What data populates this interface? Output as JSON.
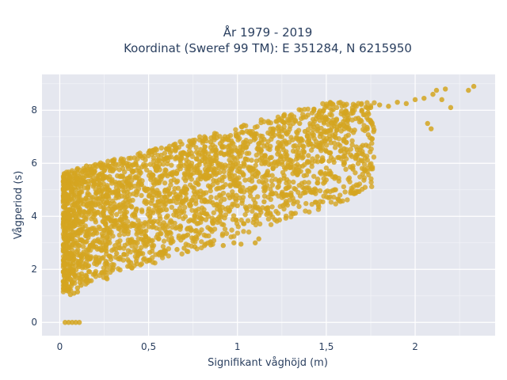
{
  "chart_data": {
    "type": "scatter",
    "title": "År 1979 - 2019",
    "subtitle": "Koordinat (Sweref 99 TM): E 351284, N 6215950",
    "xlabel": "Signifikant våghöjd (m)",
    "ylabel": "Vågperiod (s)",
    "xlim": [
      -0.1,
      2.45
    ],
    "ylim": [
      -0.5,
      9.35
    ],
    "x_ticks": [
      0,
      0.5,
      1,
      1.5,
      2
    ],
    "x_tick_labels": [
      "0",
      "0,5",
      "1",
      "1,5",
      "2"
    ],
    "y_ticks": [
      0,
      2,
      4,
      6,
      8
    ],
    "y_tick_labels": [
      "0",
      "2",
      "4",
      "6",
      "8"
    ],
    "grid": true,
    "legend": "none",
    "marker_color": "#d4a520",
    "background_color": "#e5e7ef",
    "series": [
      {
        "points": [
          [
            0.03,
            0.0
          ],
          [
            0.05,
            0.0
          ],
          [
            0.07,
            0.0
          ],
          [
            0.09,
            0.0
          ],
          [
            0.11,
            0.0
          ],
          [
            0.02,
            1.55
          ],
          [
            0.04,
            1.2
          ],
          [
            0.06,
            1.05
          ],
          [
            0.08,
            1.1
          ],
          [
            0.1,
            1.15
          ],
          [
            0.05,
            5.3
          ],
          [
            0.1,
            5.8
          ],
          [
            0.15,
            5.9
          ],
          [
            0.2,
            5.95
          ],
          [
            0.3,
            6.1
          ],
          [
            0.45,
            5.7
          ],
          [
            0.5,
            6.4
          ],
          [
            0.6,
            6.2
          ],
          [
            0.75,
            6.7
          ],
          [
            0.85,
            6.8
          ],
          [
            1.0,
            7.0
          ],
          [
            1.1,
            7.1
          ],
          [
            1.2,
            7.3
          ],
          [
            1.35,
            7.5
          ],
          [
            1.5,
            7.7
          ],
          [
            1.6,
            7.8
          ],
          [
            1.65,
            7.9
          ],
          [
            1.7,
            8.0
          ],
          [
            1.75,
            8.1
          ],
          [
            1.8,
            8.2
          ],
          [
            1.85,
            8.15
          ],
          [
            1.9,
            8.3
          ],
          [
            1.95,
            8.25
          ],
          [
            2.0,
            8.4
          ],
          [
            2.05,
            8.45
          ],
          [
            2.1,
            8.6
          ],
          [
            2.12,
            8.75
          ],
          [
            2.15,
            8.4
          ],
          [
            2.17,
            8.8
          ],
          [
            2.2,
            8.1
          ],
          [
            2.3,
            8.75
          ],
          [
            2.33,
            8.9
          ],
          [
            2.07,
            7.5
          ],
          [
            2.09,
            7.3
          ],
          [
            1.75,
            7.55
          ],
          [
            1.73,
            7.35
          ],
          [
            1.55,
            7.1
          ],
          [
            1.52,
            6.9
          ],
          [
            1.4,
            6.7
          ],
          [
            1.5,
            6.45
          ],
          [
            1.6,
            6.55
          ],
          [
            1.45,
            6.25
          ],
          [
            1.3,
            5.95
          ],
          [
            1.2,
            5.8
          ],
          [
            1.0,
            5.15
          ],
          [
            1.25,
            4.85
          ],
          [
            1.42,
            4.9
          ],
          [
            1.3,
            4.8
          ],
          [
            1.1,
            4.5
          ],
          [
            1.1,
            4.35
          ],
          [
            0.9,
            4.8
          ],
          [
            1.0,
            4.4
          ],
          [
            1.05,
            4.3
          ],
          [
            1.15,
            4.55
          ],
          [
            0.55,
            5.85
          ],
          [
            0.78,
            5.2
          ],
          [
            0.7,
            5.05
          ],
          [
            0.6,
            4.25
          ],
          [
            0.65,
            4.2
          ],
          [
            0.75,
            3.85
          ],
          [
            0.8,
            3.9
          ],
          [
            0.85,
            3.5
          ],
          [
            1.1,
            3.0
          ],
          [
            1.12,
            3.15
          ],
          [
            1.02,
            2.95
          ],
          [
            0.98,
            3.0
          ],
          [
            0.92,
            2.9
          ],
          [
            0.85,
            2.92
          ],
          [
            0.7,
            2.8
          ],
          [
            0.5,
            2.35
          ],
          [
            0.4,
            2.25
          ],
          [
            0.3,
            2.05
          ],
          [
            0.2,
            1.85
          ],
          [
            0.15,
            1.75
          ],
          [
            0.12,
            1.4
          ],
          [
            0.1,
            1.3
          ],
          [
            0.07,
            1.5
          ],
          [
            0.05,
            3.1
          ],
          [
            0.04,
            2.6
          ],
          [
            0.06,
            2.2
          ],
          [
            0.08,
            4.8
          ],
          [
            0.09,
            5.0
          ],
          [
            0.11,
            4.2
          ],
          [
            0.13,
            3.8
          ],
          [
            0.16,
            3.2
          ],
          [
            0.18,
            4.5
          ],
          [
            0.22,
            5.1
          ],
          [
            0.25,
            4.0
          ],
          [
            0.28,
            3.4
          ],
          [
            0.32,
            2.6
          ],
          [
            0.35,
            5.5
          ],
          [
            0.38,
            4.9
          ],
          [
            0.42,
            3.7
          ],
          [
            0.47,
            3.1
          ],
          [
            0.52,
            4.7
          ],
          [
            0.55,
            5.3
          ],
          [
            0.62,
            5.6
          ],
          [
            0.68,
            5.9
          ],
          [
            0.72,
            6.3
          ],
          [
            0.8,
            6.1
          ],
          [
            0.88,
            6.5
          ],
          [
            0.95,
            6.4
          ],
          [
            1.05,
            6.6
          ],
          [
            1.15,
            6.9
          ],
          [
            1.25,
            7.0
          ],
          [
            1.38,
            7.2
          ],
          [
            1.45,
            7.4
          ],
          [
            1.55,
            7.5
          ],
          [
            1.62,
            7.6
          ],
          [
            1.68,
            7.7
          ],
          [
            0.62,
            3.4
          ],
          [
            0.68,
            3.6
          ],
          [
            0.72,
            3.3
          ],
          [
            0.52,
            2.9
          ],
          [
            0.45,
            2.7
          ],
          [
            0.58,
            2.6
          ],
          [
            0.66,
            2.75
          ],
          [
            0.76,
            2.85
          ],
          [
            0.82,
            2.95
          ],
          [
            0.26,
            2.3
          ],
          [
            0.34,
            2.45
          ],
          [
            0.24,
            5.4
          ],
          [
            0.27,
            5.9
          ],
          [
            0.14,
            5.3
          ],
          [
            0.18,
            5.65
          ]
        ]
      }
    ]
  }
}
